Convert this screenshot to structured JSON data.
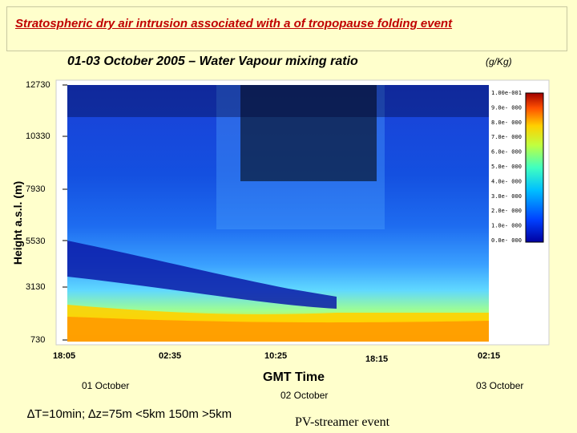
{
  "slide_title": "Stratospheric dry air intrusion associated with a of tropopause folding event",
  "chart_data": {
    "type": "heatmap",
    "title": "01-03 October 2005 – Water Vapour mixing ratio",
    "units": "(g/Kg)",
    "ylabel": "Height a.s.l. (m)",
    "xlabel": "GMT Time",
    "y_ticks": [
      "12730",
      "10330",
      "7930",
      "5530",
      "3130",
      "730"
    ],
    "x_ticks": [
      "18:05",
      "02:35",
      "10:25",
      "18:15",
      "02:15"
    ],
    "date_labels": [
      "01 October",
      "02 October",
      "03 October"
    ],
    "colorbar_ticks": [
      "1.00e-001",
      "9.0e- 000",
      "8.0e- 000",
      "7.0e- 000",
      "6.0e- 000",
      "5.0e- 000",
      "4.0e- 000",
      "3.0e- 000",
      "2.0e- 000",
      "1.0e- 000",
      "0.0e- 000"
    ],
    "colors": {
      "low": "#0000a0",
      "mid": "#00c8ff",
      "high": "#ffff00",
      "max": "#c00000"
    }
  },
  "resolution_note": "∆T=10min;  ∆z=75m <5km 150m >5km",
  "event_label": "PV-streamer event"
}
